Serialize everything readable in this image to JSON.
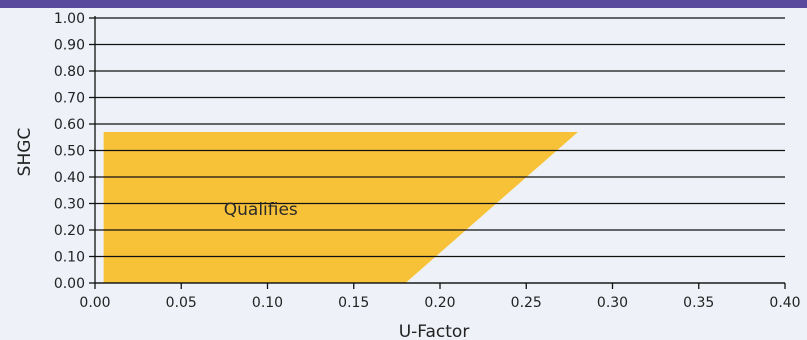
{
  "colors": {
    "band": "#5a4a9e",
    "background": "#eef2f8",
    "grid": "#111111",
    "region_fill": "#f8c238"
  },
  "chart_data": {
    "type": "area",
    "title": "",
    "xlabel": "U-Factor",
    "ylabel": "SHGC",
    "xlim": [
      0,
      0.4
    ],
    "ylim": [
      0,
      1.0
    ],
    "x_ticks": [
      "0.00",
      "0.05",
      "0.10",
      "0.15",
      "0.20",
      "0.25",
      "0.30",
      "0.35",
      "0.40"
    ],
    "y_ticks": [
      "0.00",
      "0.10",
      "0.20",
      "0.30",
      "0.40",
      "0.50",
      "0.60",
      "0.70",
      "0.80",
      "0.90",
      "1.00"
    ],
    "grid": "horizontal",
    "regions": [
      {
        "label": "Qualifies",
        "label_at": {
          "x": 0.07,
          "y": 0.28
        },
        "points": [
          {
            "x": 0.005,
            "y": 0.0
          },
          {
            "x": 0.18,
            "y": 0.0
          },
          {
            "x": 0.28,
            "y": 0.57
          },
          {
            "x": 0.005,
            "y": 0.57
          }
        ]
      }
    ]
  }
}
